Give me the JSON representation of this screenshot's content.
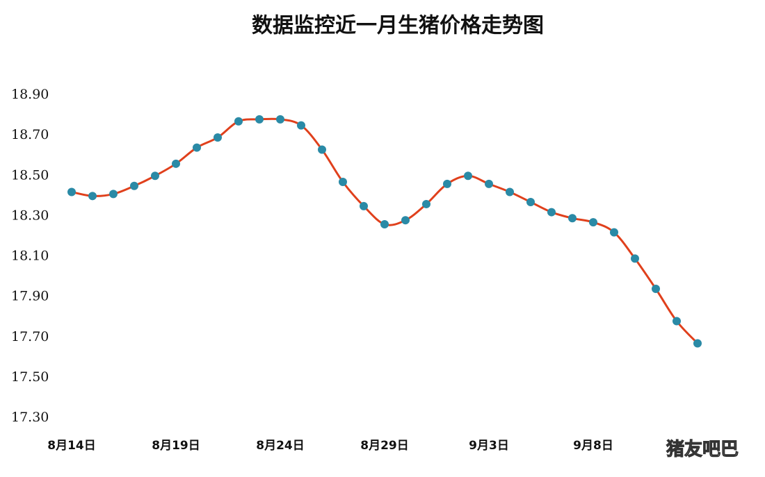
{
  "chart_data": {
    "type": "line",
    "title": "数据监控近一月生猪价格走势图",
    "categories": [
      "8月14日",
      null,
      null,
      null,
      null,
      "8月19日",
      null,
      null,
      null,
      null,
      "8月24日",
      null,
      null,
      null,
      null,
      "8月29日",
      null,
      null,
      null,
      null,
      "9月3日",
      null,
      null,
      null,
      null,
      "9月8日",
      null,
      null,
      null,
      null,
      null
    ],
    "series": [
      {
        "name": "生猪价格",
        "color": "#e0401c",
        "marker_color": "#2a8aa6",
        "values": [
          18.42,
          18.4,
          18.41,
          18.45,
          18.5,
          18.56,
          18.64,
          18.69,
          18.77,
          18.78,
          18.78,
          18.75,
          18.63,
          18.47,
          18.35,
          18.26,
          18.28,
          18.36,
          18.46,
          18.5,
          18.46,
          18.42,
          18.37,
          18.32,
          18.29,
          18.27,
          18.22,
          18.09,
          17.94,
          17.78,
          17.67
        ]
      }
    ],
    "ylim": [
      17.3,
      18.9
    ],
    "yticks": [
      {
        "value": 18.9,
        "label": "18.90"
      },
      {
        "value": 18.7,
        "label": "18.70"
      },
      {
        "value": 18.5,
        "label": "18.50"
      },
      {
        "value": 18.3,
        "label": "18.30"
      },
      {
        "value": 18.1,
        "label": "18.10"
      },
      {
        "value": 17.9,
        "label": "17.90"
      },
      {
        "value": 17.7,
        "label": "17.70"
      },
      {
        "value": 17.5,
        "label": "17.50"
      },
      {
        "value": 17.3,
        "label": "17.30"
      }
    ],
    "grid": false,
    "watermark": "猪友吧巴"
  }
}
